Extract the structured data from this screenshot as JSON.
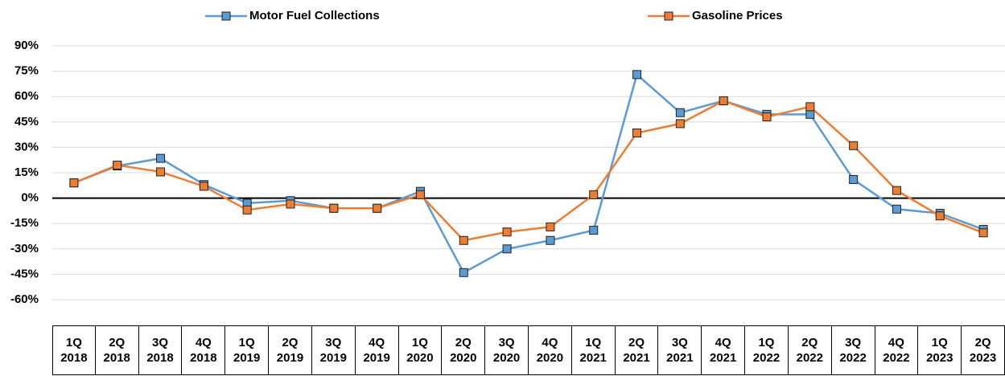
{
  "chart_data": {
    "type": "line",
    "categories": [
      "1Q 2018",
      "2Q 2018",
      "3Q 2018",
      "4Q 2018",
      "1Q 2019",
      "2Q 2019",
      "3Q 2019",
      "4Q 2019",
      "1Q 2020",
      "2Q 2020",
      "3Q 2020",
      "4Q 2020",
      "1Q 2021",
      "2Q 2021",
      "3Q 2021",
      "4Q 2021",
      "1Q 2022",
      "2Q 2022",
      "3Q 2022",
      "4Q 2022",
      "1Q 2023",
      "2Q 2023"
    ],
    "series": [
      {
        "name": "Motor Fuel Collections",
        "color": "#5b9bd5",
        "values": [
          9,
          19,
          23.5,
          8,
          -3,
          -1.5,
          -6,
          -6,
          4,
          -44,
          -30,
          -25,
          -19,
          73,
          50.5,
          57.5,
          49.5,
          49.5,
          11,
          -6.5,
          -9,
          -18.5
        ]
      },
      {
        "name": "Gasoline Prices",
        "color": "#ed7d31",
        "values": [
          9,
          19.5,
          15.5,
          7,
          -7,
          -3.5,
          -6,
          -6,
          2,
          -25,
          -20,
          -17,
          2,
          38.5,
          44,
          57.5,
          48,
          54,
          31,
          4.5,
          -10.5,
          -20.5
        ]
      }
    ],
    "ylim": [
      -75,
      90
    ],
    "yticks": [
      {
        "value": -60,
        "label": "-60%"
      },
      {
        "value": -45,
        "label": "-45%"
      },
      {
        "value": -30,
        "label": "-30%"
      },
      {
        "value": -15,
        "label": "-15%"
      },
      {
        "value": 0,
        "label": "0%"
      },
      {
        "value": 15,
        "label": "15%"
      },
      {
        "value": 30,
        "label": "30%"
      },
      {
        "value": 45,
        "label": "45%"
      },
      {
        "value": 60,
        "label": "60%"
      },
      {
        "value": 75,
        "label": "75%"
      },
      {
        "value": 90,
        "label": "90%"
      }
    ],
    "grid": true,
    "legend": "top"
  }
}
